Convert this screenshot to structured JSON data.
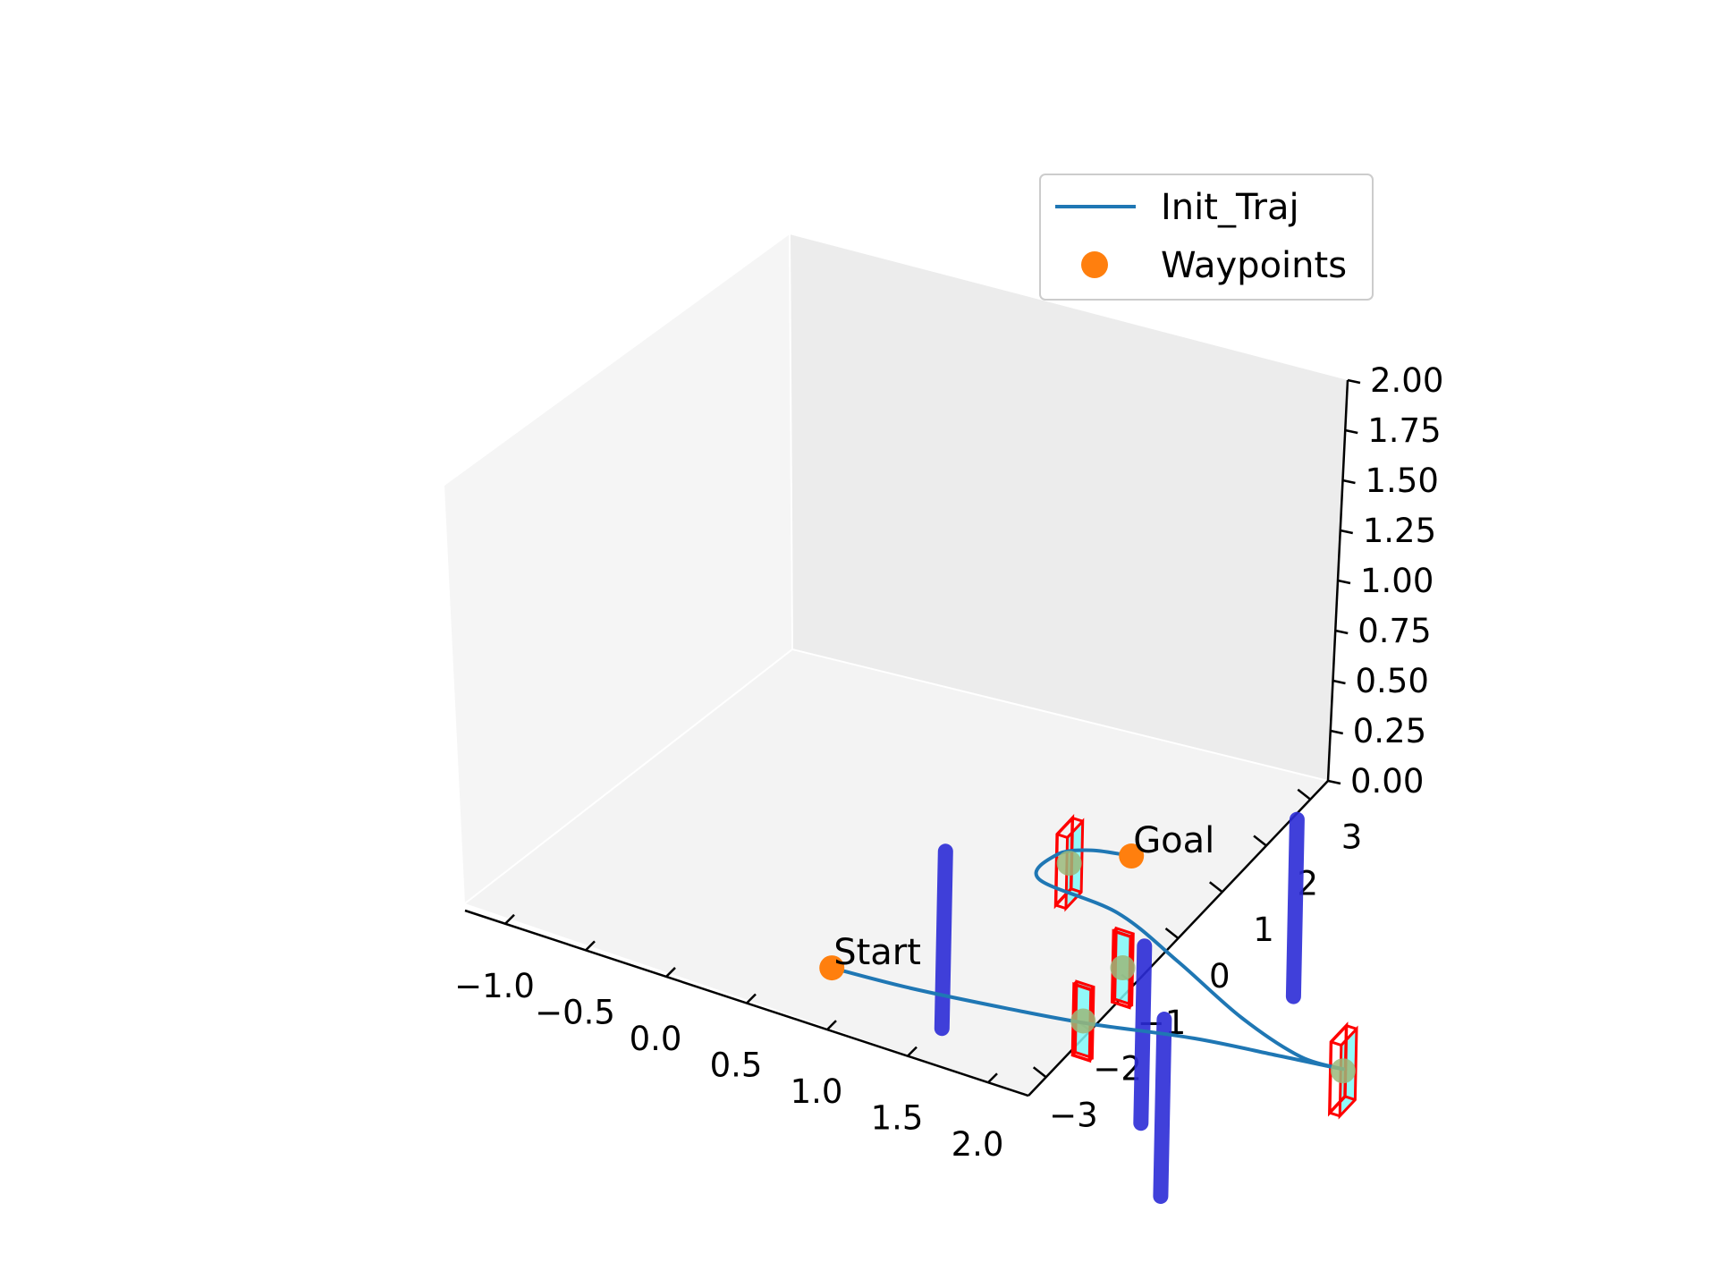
{
  "chart_data": {
    "type": "3d-line",
    "title": "",
    "xlabel": "",
    "ylabel": "",
    "zlabel": "",
    "xlim": [
      -1.25,
      2.25
    ],
    "ylim": [
      -3.4,
      3.4
    ],
    "zlim": [
      0,
      2
    ],
    "x_ticks": [
      "−1.0",
      "−0.5",
      "0.0",
      "0.5",
      "1.0",
      "1.5",
      "2.0"
    ],
    "y_ticks": [
      "−3",
      "−2",
      "−1",
      "0",
      "1",
      "2",
      "3"
    ],
    "z_ticks": [
      "0.00",
      "0.25",
      "0.50",
      "0.75",
      "1.00",
      "1.25",
      "1.50",
      "1.75",
      "2.00"
    ],
    "legend": {
      "position": "upper-right",
      "entries": [
        {
          "label": "Init_Traj",
          "color": "#1f77b4",
          "marker": "line"
        },
        {
          "label": "Waypoints",
          "color": "#ff7f0e",
          "marker": "circle"
        }
      ]
    },
    "series": [
      {
        "name": "Init_Traj",
        "color": "#1f77b4",
        "points": [
          [
            -0.9,
            -1.0,
            0.48
          ],
          [
            -0.5,
            -0.8,
            0.44
          ],
          [
            0.0,
            -0.5,
            0.4
          ],
          [
            0.4,
            -0.2,
            0.36
          ],
          [
            0.9,
            0.3,
            0.3
          ],
          [
            1.3,
            0.7,
            0.22
          ],
          [
            1.6,
            1.0,
            0.16
          ],
          [
            1.4,
            0.8,
            0.22
          ],
          [
            1.1,
            0.6,
            0.4
          ],
          [
            0.8,
            0.3,
            0.7
          ],
          [
            0.5,
            0.05,
            0.95
          ],
          [
            0.15,
            -0.4,
            1.15
          ],
          [
            0.2,
            -0.2,
            1.25
          ],
          [
            0.35,
            0.0,
            1.27
          ],
          [
            0.55,
            0.15,
            1.26
          ]
        ]
      }
    ],
    "waypoints": {
      "color": "#ff7f0e",
      "points": [
        {
          "label": "Start",
          "x": -0.9,
          "y": -1.0,
          "z": 0.48
        },
        {
          "label": "Goal",
          "x": 0.55,
          "y": 0.15,
          "z": 1.26
        }
      ]
    },
    "gate_centers": {
      "color": "#9ab97a",
      "points": [
        [
          0.3,
          -0.3,
          1.26
        ],
        [
          0.5,
          0.2,
          0.6
        ],
        [
          0.4,
          -0.3,
          0.4
        ],
        [
          1.6,
          1.0,
          0.15
        ]
      ]
    },
    "gates": {
      "fill": "#7ff8f8",
      "edge": "#ff0000",
      "items": [
        {
          "center": [
            0.3,
            -0.3,
            1.26
          ],
          "width": 0.35,
          "height": 0.4,
          "facing": "x"
        },
        {
          "center": [
            0.5,
            0.2,
            0.6
          ],
          "width": 0.1,
          "height": 0.4,
          "facing": "y"
        },
        {
          "center": [
            0.4,
            -0.3,
            0.4
          ],
          "width": 0.1,
          "height": 0.4,
          "facing": "y"
        },
        {
          "center": [
            1.6,
            1.0,
            0.15
          ],
          "width": 0.35,
          "height": 0.4,
          "facing": "x"
        }
      ]
    },
    "obstacles": {
      "color": "#2b2bd6",
      "items": [
        {
          "x": -0.5,
          "y": 0.0,
          "z0": 0.0,
          "z1": 1.0
        },
        {
          "x": 0.8,
          "y": -0.5,
          "z0": 0.0,
          "z1": 1.0
        },
        {
          "x": 1.2,
          "y": -1.6,
          "z0": 0.0,
          "z1": 1.0
        },
        {
          "x": 0.95,
          "y": 2.4,
          "z0": 0.0,
          "z1": 1.0
        }
      ]
    },
    "grid": false
  }
}
